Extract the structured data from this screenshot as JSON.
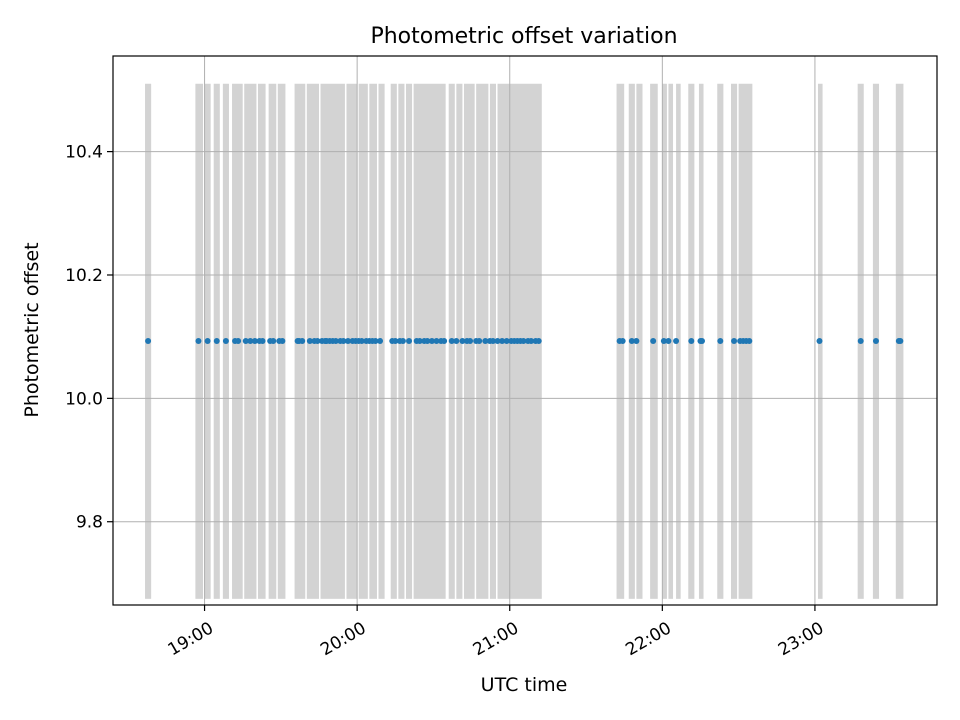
{
  "chart_data": {
    "type": "scatter",
    "title": "Photometric offset variation",
    "xlabel": "UTC time",
    "ylabel": "Photometric offset",
    "grid": true,
    "xlim_hours": [
      18.4,
      23.8
    ],
    "ylim": [
      9.665,
      10.555
    ],
    "x_ticks": [
      {
        "value": 19,
        "label": "19:00"
      },
      {
        "value": 20,
        "label": "20:00"
      },
      {
        "value": 21,
        "label": "21:00"
      },
      {
        "value": 22,
        "label": "22:00"
      },
      {
        "value": 23,
        "label": "23:00"
      }
    ],
    "y_ticks": [
      {
        "value": 9.8,
        "label": "9.8"
      },
      {
        "value": 10.0,
        "label": "10.0"
      },
      {
        "value": 10.2,
        "label": "10.2"
      },
      {
        "value": 10.4,
        "label": "10.4"
      }
    ],
    "band_range": [
      9.675,
      10.51
    ],
    "band_color": "#d3d3d3",
    "point_color": "#1f77b4",
    "y_value": 10.093,
    "x": [
      18.63,
      18.96,
      19.02,
      19.08,
      19.14,
      19.2,
      19.22,
      19.27,
      19.3,
      19.33,
      19.36,
      19.38,
      19.43,
      19.45,
      19.49,
      19.51,
      19.61,
      19.62,
      19.64,
      19.69,
      19.72,
      19.74,
      19.77,
      19.79,
      19.8,
      19.82,
      19.84,
      19.86,
      19.89,
      19.91,
      19.94,
      19.97,
      19.99,
      20.01,
      20.03,
      20.06,
      20.08,
      20.1,
      20.12,
      20.15,
      20.23,
      20.25,
      20.28,
      20.3,
      20.34,
      20.39,
      20.41,
      20.44,
      20.46,
      20.49,
      20.52,
      20.55,
      20.57,
      20.62,
      20.65,
      20.69,
      20.72,
      20.74,
      20.78,
      20.8,
      20.84,
      20.87,
      20.89,
      20.92,
      20.95,
      20.98,
      21.01,
      21.03,
      21.05,
      21.07,
      21.09,
      21.12,
      21.14,
      21.17,
      21.19,
      21.72,
      21.74,
      21.8,
      21.83,
      21.94,
      22.01,
      22.04,
      22.09,
      22.19,
      22.25,
      22.26,
      22.38,
      22.47,
      22.51,
      22.53,
      22.55,
      22.57,
      23.03,
      23.3,
      23.4,
      23.55,
      23.56
    ],
    "bands": [
      [
        18.61,
        18.65
      ],
      [
        18.94,
        18.99
      ],
      [
        19.0,
        19.04
      ],
      [
        19.06,
        19.1
      ],
      [
        19.12,
        19.16
      ],
      [
        19.18,
        19.25
      ],
      [
        19.26,
        19.34
      ],
      [
        19.35,
        19.4
      ],
      [
        19.42,
        19.47
      ],
      [
        19.48,
        19.53
      ],
      [
        19.59,
        19.66
      ],
      [
        19.67,
        19.75
      ],
      [
        19.76,
        19.92
      ],
      [
        19.93,
        20.0
      ],
      [
        20.01,
        20.07
      ],
      [
        20.08,
        20.13
      ],
      [
        20.14,
        20.18
      ],
      [
        20.22,
        20.26
      ],
      [
        20.27,
        20.31
      ],
      [
        20.32,
        20.36
      ],
      [
        20.37,
        20.58
      ],
      [
        20.6,
        20.64
      ],
      [
        20.65,
        20.69
      ],
      [
        20.7,
        20.77
      ],
      [
        20.78,
        20.86
      ],
      [
        20.87,
        20.91
      ],
      [
        20.92,
        21.21
      ],
      [
        21.7,
        21.75
      ],
      [
        21.78,
        21.82
      ],
      [
        21.83,
        21.87
      ],
      [
        21.92,
        21.97
      ],
      [
        22.0,
        22.03
      ],
      [
        22.04,
        22.07
      ],
      [
        22.09,
        22.12
      ],
      [
        22.17,
        22.21
      ],
      [
        22.24,
        22.27
      ],
      [
        22.36,
        22.4
      ],
      [
        22.45,
        22.49
      ],
      [
        22.5,
        22.59
      ],
      [
        23.02,
        23.05
      ],
      [
        23.28,
        23.32
      ],
      [
        23.38,
        23.42
      ],
      [
        23.53,
        23.58
      ]
    ]
  }
}
